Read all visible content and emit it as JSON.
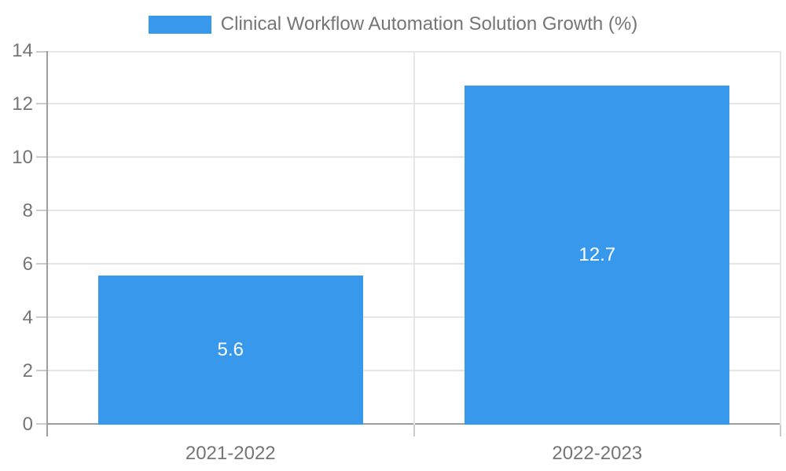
{
  "chart_data": {
    "type": "bar",
    "title": "Clinical Workflow Automation Solution Growth (%)",
    "legend": {
      "label": "Clinical Workflow Automation Solution Growth (%)",
      "position": "top-center"
    },
    "categories": [
      "2021-2022",
      "2022-2023"
    ],
    "series": [
      {
        "name": "Clinical Workflow Automation Solution Growth (%)",
        "values": [
          5.6,
          12.7
        ]
      }
    ],
    "bar_value_labels": [
      "5.6",
      "12.7"
    ],
    "xlabel": "",
    "ylabel": "",
    "ylim": [
      0,
      14
    ],
    "yticks": [
      0,
      2,
      4,
      6,
      8,
      10,
      12,
      14
    ],
    "grid": true,
    "colors": {
      "bar": "#3899EC",
      "bar_label": "#FFFFFF",
      "axis_line": "#9E9E9E",
      "gridline": "#E6E6E6",
      "tick_mark": "#CBCBCB",
      "axis_text": "#757575",
      "legend_text": "#757575",
      "background": "#FFFFFF"
    }
  }
}
